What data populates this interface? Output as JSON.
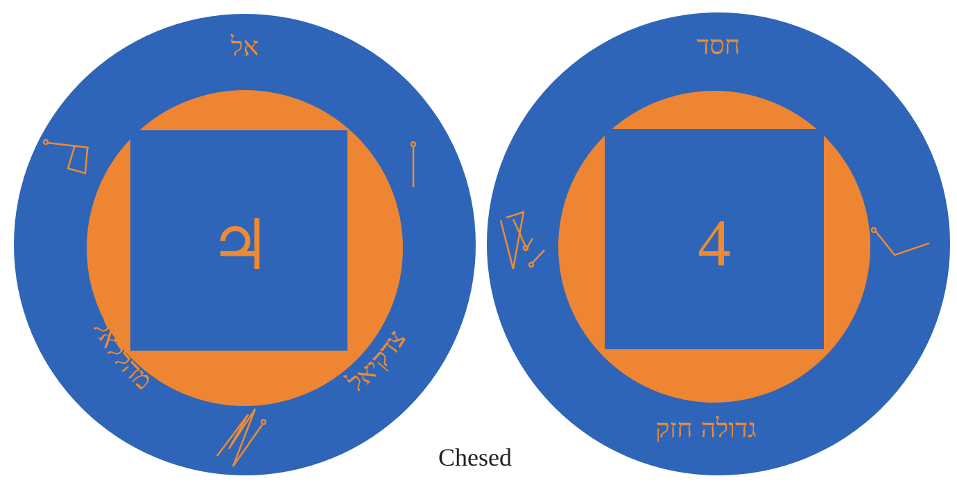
{
  "caption": "Chesed",
  "colors": {
    "rim": "#2e65b8",
    "orange": "#ee8532",
    "square": "#2e65b8",
    "text": "#f08a32"
  },
  "left_talisman": {
    "top_text": "אל",
    "left_text": "מהללאל",
    "right_text": "צדקיאל",
    "center_symbol": "♃"
  },
  "right_talisman": {
    "top_text": "חסד",
    "bottom_text": "גדולה חזק",
    "center_symbol": "4"
  }
}
